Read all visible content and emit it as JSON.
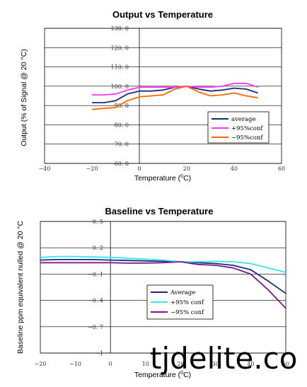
{
  "chart_data": [
    {
      "type": "line",
      "title": "Output vs Temperature",
      "xlabel": "Temperature (°C)",
      "xlabel_parts": [
        "Temperature (",
        "0",
        "C)"
      ],
      "ylabel": "Output (% of Signal @ 20 °C)",
      "xlim": [
        -40,
        60
      ],
      "ylim": [
        60,
        130
      ],
      "xticks": [
        -40,
        -20,
        0,
        20,
        40,
        60
      ],
      "xtick_labels": [
        "−40",
        "−20",
        "0",
        "20",
        "40",
        "60"
      ],
      "yticks": [
        60,
        70,
        80,
        90,
        100,
        110,
        120,
        130
      ],
      "ytick_labels": [
        "60. 0",
        "70. 0",
        "80. 0",
        "90. 0",
        "100. 0",
        "110. 0",
        "120. 0",
        "130. 0"
      ],
      "grid": "horizontal",
      "legend_position": "bottom-right",
      "series": [
        {
          "name": "average",
          "color": "#1f2a7a",
          "x": [
            -20,
            -15,
            -10,
            -5,
            0,
            5,
            10,
            15,
            20,
            25,
            30,
            35,
            40,
            45,
            50
          ],
          "y": [
            91.5,
            91.5,
            92.5,
            96,
            97.5,
            97.5,
            98,
            99.5,
            100,
            98.5,
            97.5,
            98,
            99,
            98.5,
            96.5
          ]
        },
        {
          "name": "+95%conf",
          "color": "#ff33ff",
          "x": [
            -20,
            -15,
            -10,
            -5,
            0,
            5,
            10,
            15,
            20,
            25,
            30,
            35,
            40,
            45,
            50
          ],
          "y": [
            95.5,
            95.5,
            96,
            98,
            99.5,
            99.5,
            99.5,
            99.5,
            100,
            99.5,
            99.5,
            100,
            101.5,
            101.5,
            99.5
          ]
        },
        {
          "name": "−95%conf",
          "color": "#ff6600",
          "x": [
            -20,
            -15,
            -10,
            -5,
            0,
            5,
            10,
            15,
            20,
            25,
            30,
            35,
            40,
            45,
            50
          ],
          "y": [
            88,
            88.5,
            89,
            92.5,
            94.5,
            95,
            95.5,
            98.5,
            100,
            97,
            95,
            95.5,
            96.5,
            95,
            94
          ]
        }
      ]
    },
    {
      "type": "line",
      "title": "Baseline vs Temperature",
      "xlabel": "Temperature (°C)",
      "xlabel_parts": [
        "Temperature (",
        "0",
        "C)"
      ],
      "ylabel": "Baseline ppm equivalent nulled @ 20 °C",
      "xlim": [
        -20,
        50
      ],
      "ylim": [
        -1,
        0.5
      ],
      "xticks": [
        -20,
        -10,
        0,
        10,
        20,
        30,
        40,
        50
      ],
      "xtick_labels": [
        "−20",
        "−10",
        "0",
        "10",
        "20",
        "30",
        "40",
        "50"
      ],
      "yticks": [
        -1,
        -0.7,
        -0.4,
        -0.1,
        0.2,
        0.5
      ],
      "ytick_labels": [
        "−1",
        "−0. 7",
        "−0. 4",
        "−0. 1",
        "0. 2",
        "0. 5"
      ],
      "grid": "horizontal",
      "legend_position": "center-right",
      "series": [
        {
          "name": "Average",
          "color": "#1f2a7a",
          "x": [
            -20,
            -15,
            -10,
            -5,
            0,
            5,
            10,
            15,
            20,
            25,
            30,
            35,
            40,
            45,
            50
          ],
          "y": [
            0.06,
            0.065,
            0.065,
            0.065,
            0.06,
            0.055,
            0.05,
            0.045,
            0.04,
            0.03,
            0.02,
            0.0,
            -0.05,
            -0.18,
            -0.32
          ]
        },
        {
          "name": "+95% conf",
          "color": "#33e6f0",
          "x": [
            -20,
            -15,
            -10,
            -5,
            0,
            5,
            10,
            15,
            20,
            25,
            30,
            35,
            40,
            45,
            50
          ],
          "y": [
            0.09,
            0.1,
            0.1,
            0.095,
            0.09,
            0.08,
            0.07,
            0.06,
            0.04,
            0.04,
            0.045,
            0.04,
            0.02,
            -0.03,
            -0.08
          ]
        },
        {
          "name": "−95% conf",
          "color": "#7a1a8a",
          "x": [
            -20,
            -15,
            -10,
            -5,
            0,
            5,
            10,
            15,
            20,
            25,
            30,
            35,
            40,
            45,
            50
          ],
          "y": [
            0.03,
            0.03,
            0.03,
            0.03,
            0.03,
            0.025,
            0.025,
            0.03,
            0.04,
            0.01,
            0.0,
            -0.03,
            -0.1,
            -0.28,
            -0.49
          ]
        }
      ]
    }
  ],
  "watermark": "tjdelite.co"
}
